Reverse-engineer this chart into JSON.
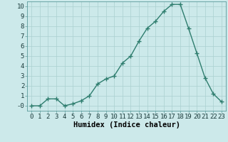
{
  "x": [
    0,
    1,
    2,
    3,
    4,
    5,
    6,
    7,
    8,
    9,
    10,
    11,
    12,
    13,
    14,
    15,
    16,
    17,
    18,
    19,
    20,
    21,
    22,
    23
  ],
  "y": [
    0,
    0,
    0.7,
    0.7,
    0,
    0.2,
    0.5,
    1.0,
    2.2,
    2.7,
    3.0,
    4.3,
    5.0,
    6.5,
    7.8,
    8.5,
    9.5,
    10.2,
    10.2,
    7.8,
    5.3,
    2.8,
    1.2,
    0.4
  ],
  "line_color": "#2e7d6e",
  "marker": "+",
  "marker_size": 4,
  "linewidth": 1.0,
  "bg_color": "#cce9ea",
  "grid_color": "#aad0d0",
  "xlabel": "Humidex (Indice chaleur)",
  "ylim": [
    -0.5,
    10.5
  ],
  "xlim": [
    -0.5,
    23.5
  ],
  "yticks": [
    0,
    1,
    2,
    3,
    4,
    5,
    6,
    7,
    8,
    9,
    10
  ],
  "ytick_labels": [
    "-0",
    "1",
    "2",
    "3",
    "4",
    "5",
    "6",
    "7",
    "8",
    "9",
    "10"
  ],
  "xticks": [
    0,
    1,
    2,
    3,
    4,
    5,
    6,
    7,
    8,
    9,
    10,
    11,
    12,
    13,
    14,
    15,
    16,
    17,
    18,
    19,
    20,
    21,
    22,
    23
  ],
  "tick_fontsize": 6.5,
  "xlabel_fontsize": 7.5
}
